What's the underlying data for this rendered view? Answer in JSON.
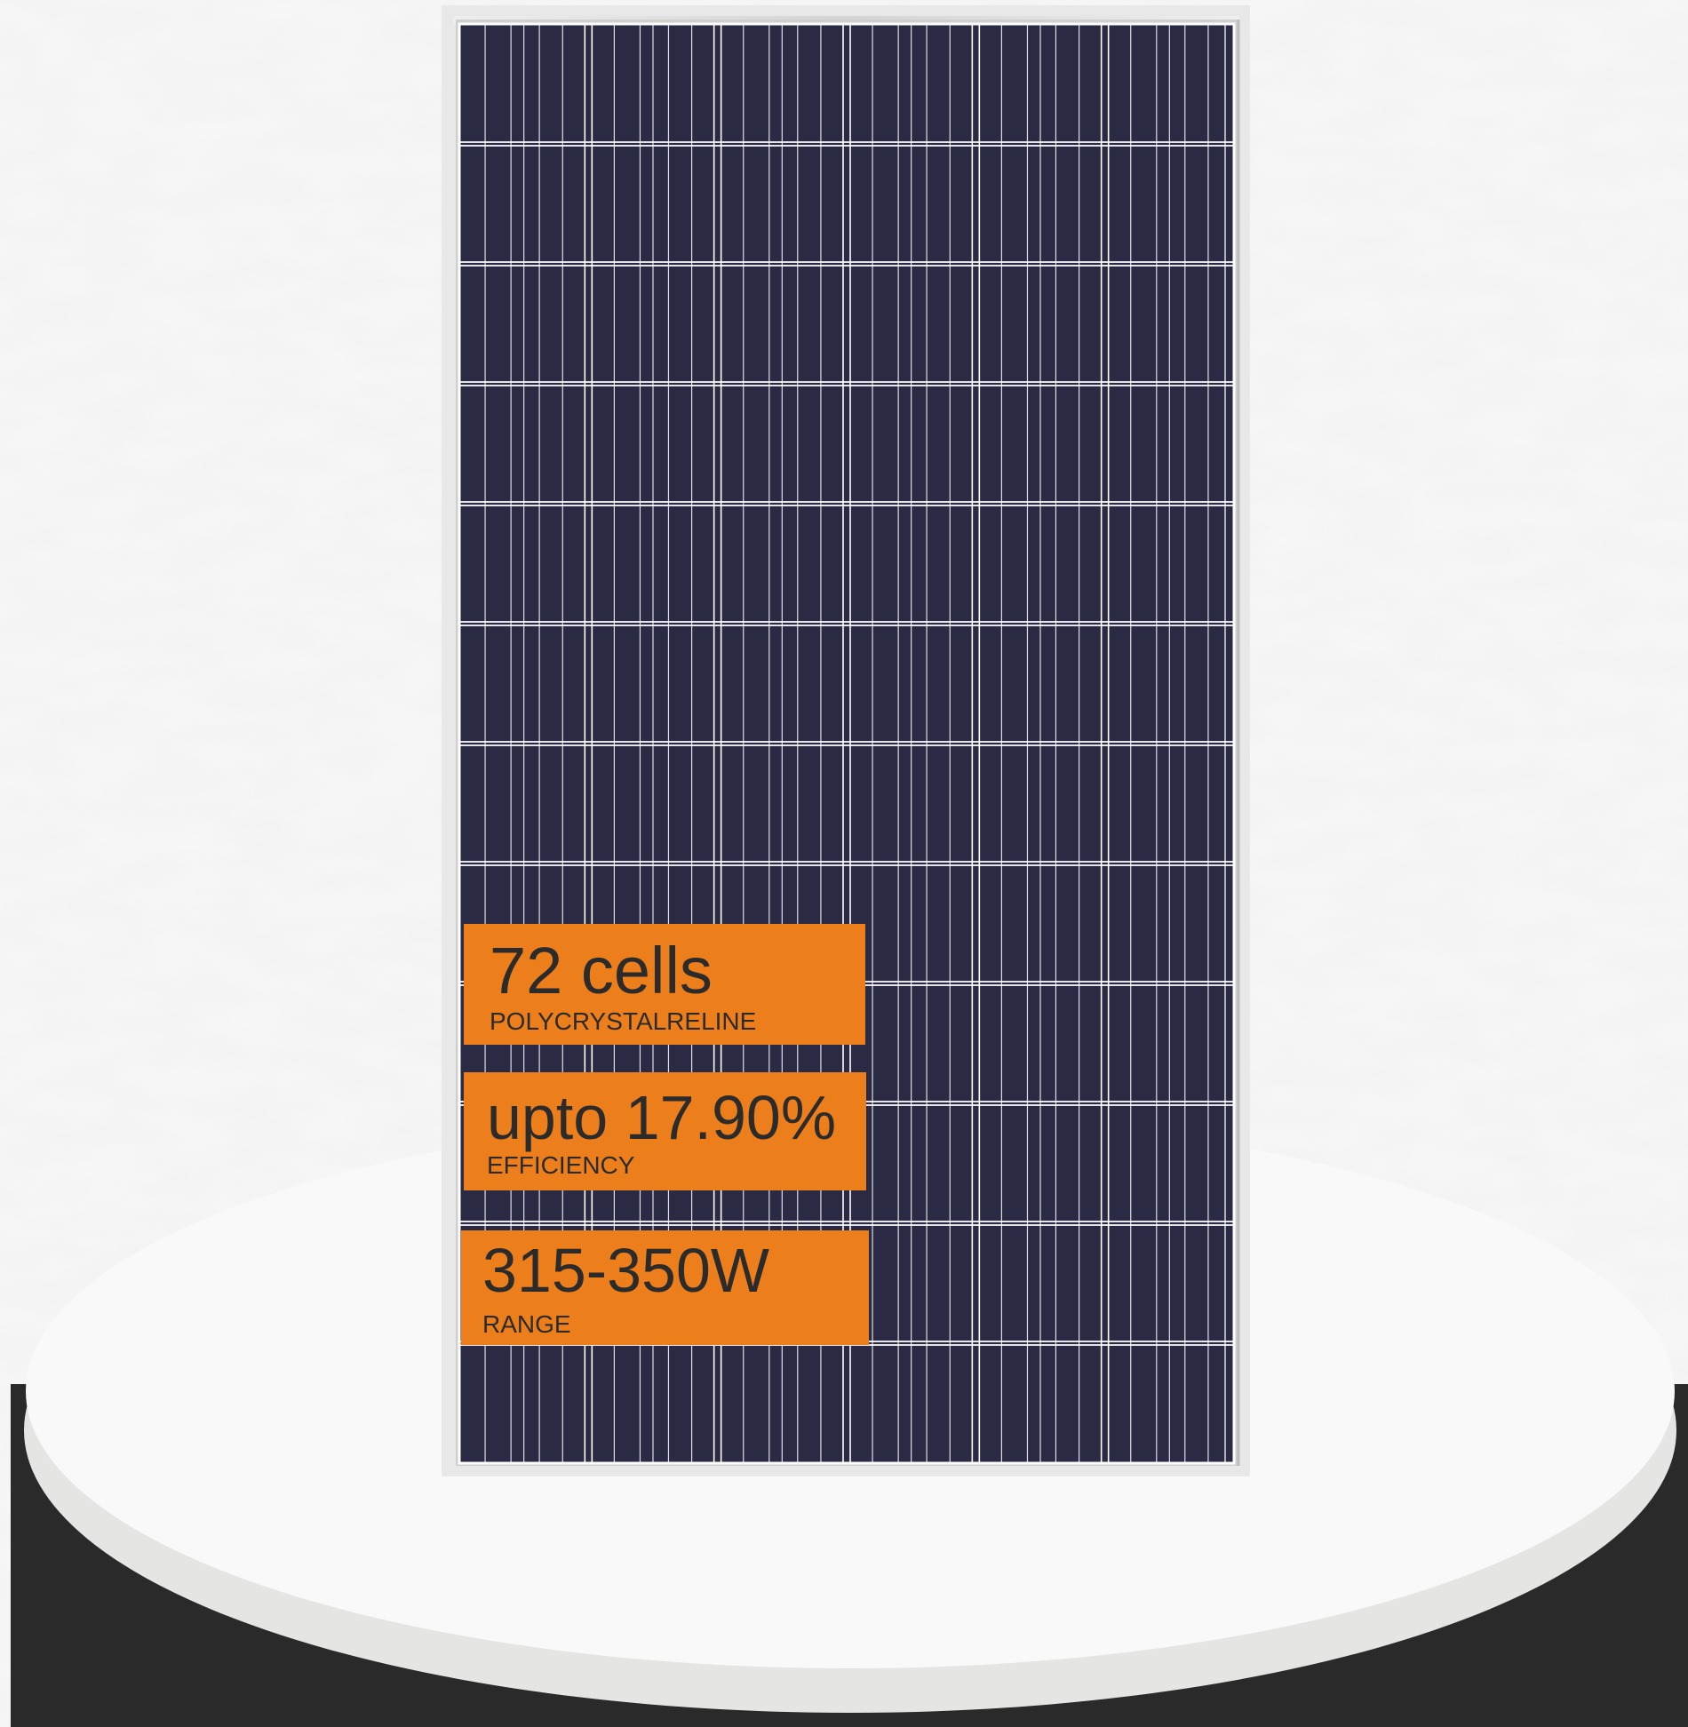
{
  "product": {
    "name": "polycrystalline solar panel",
    "cell_columns": 6,
    "cell_rows": 12
  },
  "colors": {
    "panel_cell": "#2a2a44",
    "panel_grid": "#ffffff",
    "panel_frame": "#d9d9d9",
    "badge_orange": "#ed7e1c",
    "badge_text": "#2b2b2b",
    "pedestal_top": "#f7f8f7",
    "pedestal_side": "#e6e6e4",
    "backdrop": "#2a2a2a"
  },
  "specs": [
    {
      "main": "72 cells",
      "sub": "POLYCRYSTALRELINE"
    },
    {
      "main": "upto 17.90%",
      "sub": "EFFICIENCY"
    },
    {
      "main": "315-350W",
      "sub": "RANGE"
    }
  ]
}
